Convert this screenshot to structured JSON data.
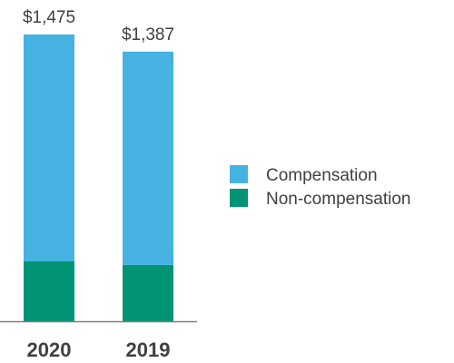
{
  "chart_data": {
    "type": "bar",
    "stacked": true,
    "categories": [
      "2020",
      "2019"
    ],
    "totals": [
      "$1,475",
      "$1,387"
    ],
    "series": [
      {
        "name": "Non-compensation",
        "values": [
          308,
          290
        ],
        "color": "#009474"
      },
      {
        "name": "Compensation",
        "values": [
          1167,
          1097
        ],
        "color": "#46b2e2"
      }
    ],
    "legend_order": [
      "Compensation",
      "Non-compensation"
    ],
    "ylim": [
      0,
      1475
    ],
    "grid": false,
    "legend_position": "right",
    "axis_color": "#808080",
    "label_color": "#404040"
  }
}
